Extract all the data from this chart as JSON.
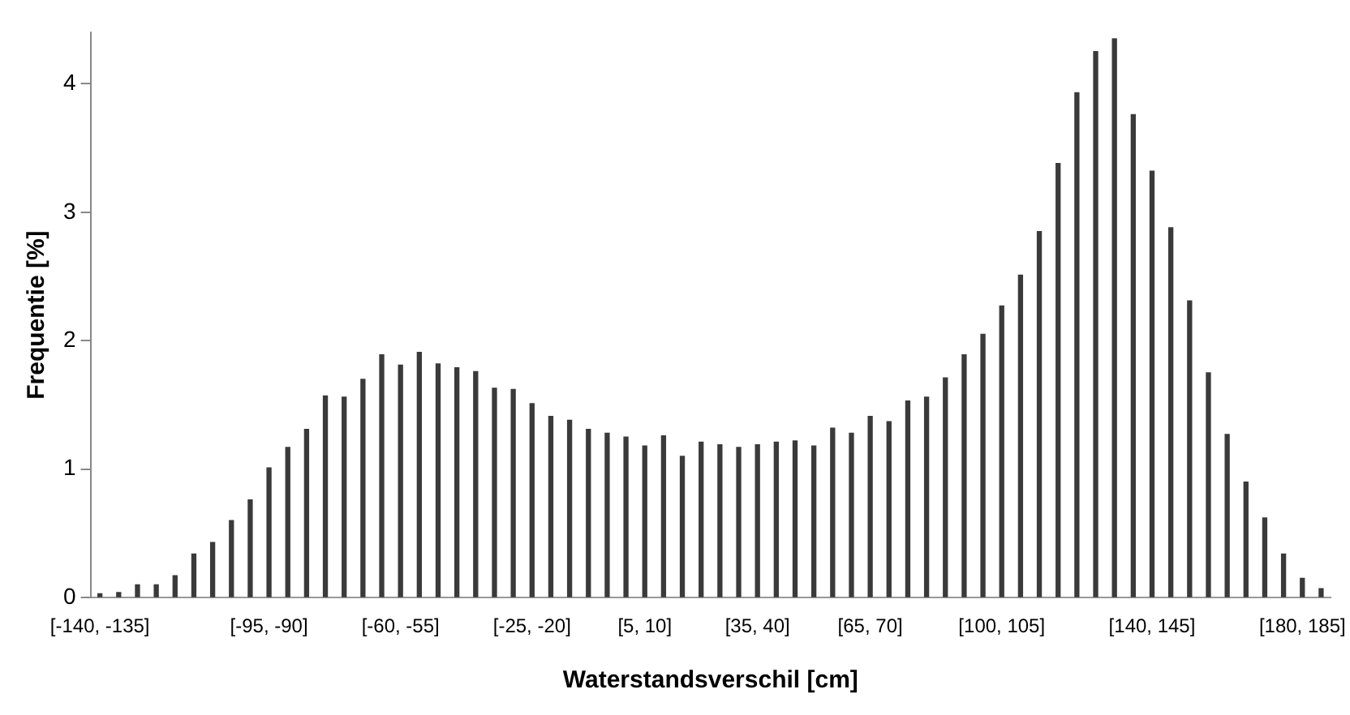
{
  "chart_data": {
    "type": "bar",
    "xlabel": "Waterstandsverschil [cm]",
    "ylabel": "Frequentie [%]",
    "categories": [
      "[-140, -135]",
      null,
      null,
      null,
      null,
      null,
      null,
      null,
      null,
      "[-95, -90]",
      null,
      null,
      null,
      null,
      null,
      null,
      "[-60, -55]",
      null,
      null,
      null,
      null,
      null,
      null,
      "[-25, -20]",
      null,
      null,
      null,
      null,
      null,
      "[5, 10]",
      null,
      null,
      null,
      null,
      null,
      "[35, 40]",
      null,
      null,
      null,
      null,
      null,
      "[65, 70]",
      null,
      null,
      null,
      null,
      null,
      null,
      "[100, 105]",
      null,
      null,
      null,
      null,
      null,
      null,
      null,
      "[140, 145]",
      null,
      null,
      null,
      null,
      null,
      null,
      null,
      "[180, 185]",
      null
    ],
    "values": [
      0.03,
      0.04,
      0.1,
      0.1,
      0.17,
      0.34,
      0.43,
      0.6,
      0.76,
      1.01,
      1.17,
      1.31,
      1.57,
      1.56,
      1.7,
      1.89,
      1.81,
      1.91,
      1.82,
      1.79,
      1.76,
      1.63,
      1.62,
      1.51,
      1.41,
      1.38,
      1.31,
      1.28,
      1.25,
      1.18,
      1.26,
      1.1,
      1.21,
      1.19,
      1.17,
      1.19,
      1.21,
      1.22,
      1.18,
      1.32,
      1.28,
      1.41,
      1.37,
      1.53,
      1.56,
      1.71,
      1.89,
      2.05,
      2.27,
      2.51,
      2.85,
      3.38,
      3.93,
      4.25,
      4.35,
      3.76,
      3.32,
      2.88,
      2.31,
      1.75,
      1.27,
      0.9,
      0.62,
      0.34,
      0.15,
      0.07
    ],
    "color": "#3a3a3a",
    "ylim": [
      0,
      4.4
    ],
    "yticks": [
      0,
      1,
      2,
      3,
      4
    ],
    "grid": false,
    "legend": false
  }
}
